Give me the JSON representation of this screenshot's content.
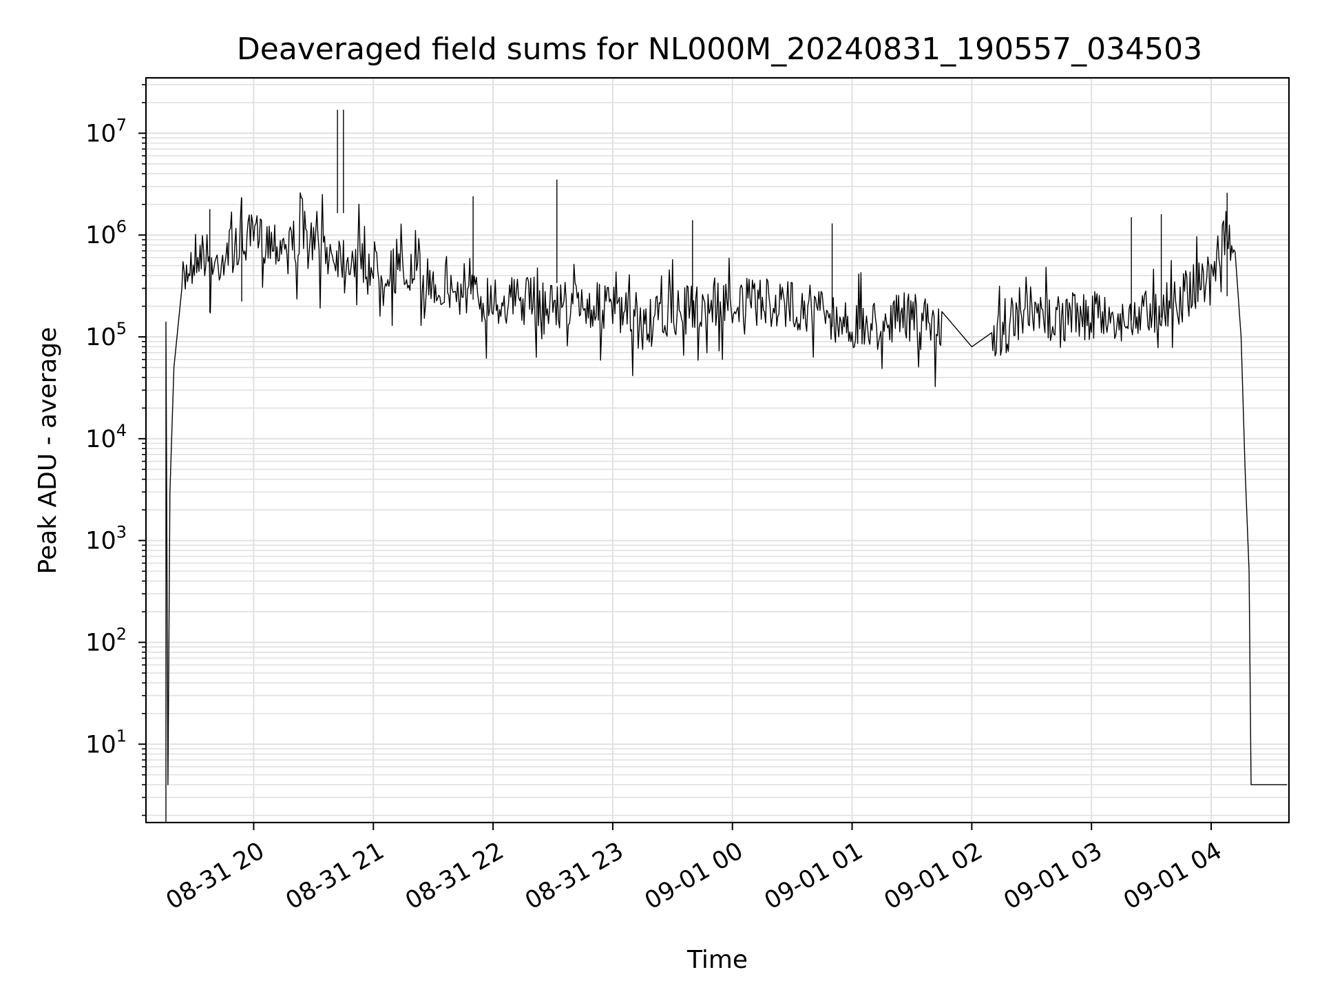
{
  "chart_data": {
    "type": "line",
    "title": "Deaveraged field sums for NL000M_20240831_190557_034503",
    "xlabel": "Time",
    "ylabel": "Peak ADU - average",
    "y_scale": "log",
    "ylim": [
      1.7,
      35000000
    ],
    "xlim": [
      "2024-08-31 19:06:00",
      "2024-09-01 04:39:00"
    ],
    "grid": true,
    "grid_minor": true,
    "line_color": "#000000",
    "grid_color": "#e0e0e0",
    "x_ticks": [
      {
        "value": "2024-08-31 20:00",
        "label": "08-31 20"
      },
      {
        "value": "2024-08-31 21:00",
        "label": "08-31 21"
      },
      {
        "value": "2024-08-31 22:00",
        "label": "08-31 22"
      },
      {
        "value": "2024-08-31 23:00",
        "label": "08-31 23"
      },
      {
        "value": "2024-09-01 00:00",
        "label": "09-01 00"
      },
      {
        "value": "2024-09-01 01:00",
        "label": "09-01 01"
      },
      {
        "value": "2024-09-01 02:00",
        "label": "09-01 02"
      },
      {
        "value": "2024-09-01 03:00",
        "label": "09-01 03"
      },
      {
        "value": "2024-09-01 04:00",
        "label": "09-01 04"
      }
    ],
    "y_ticks": [
      {
        "value": 10,
        "base": "10",
        "exp": "1"
      },
      {
        "value": 100,
        "base": "10",
        "exp": "2"
      },
      {
        "value": 1000,
        "base": "10",
        "exp": "3"
      },
      {
        "value": 10000,
        "base": "10",
        "exp": "4"
      },
      {
        "value": 100000,
        "base": "10",
        "exp": "5"
      },
      {
        "value": 1000000,
        "base": "10",
        "exp": "6"
      },
      {
        "value": 10000000,
        "base": "10",
        "exp": "7"
      }
    ],
    "series": [
      {
        "points": [
          [
            "2024-08-31 19:16",
            1.7
          ],
          [
            "2024-08-31 19:16",
            140000
          ],
          [
            "2024-08-31 19:17",
            4
          ],
          [
            "2024-08-31 19:18",
            3000
          ],
          [
            "2024-08-31 19:20",
            50000
          ],
          [
            "2024-08-31 19:24",
            300000
          ],
          [
            "2024-08-31 19:28",
            600000
          ],
          [
            "2024-08-31 19:32",
            750000
          ],
          [
            "2024-08-31 19:36",
            680000
          ],
          [
            "2024-08-31 19:40",
            500000
          ],
          [
            "2024-08-31 19:45",
            700000
          ],
          [
            "2024-08-31 19:50",
            800000
          ],
          [
            "2024-08-31 19:55",
            900000
          ],
          [
            "2024-08-31 20:00",
            1000000
          ],
          [
            "2024-08-31 20:10",
            950000
          ],
          [
            "2024-08-31 20:20",
            900000
          ],
          [
            "2024-08-31 20:30",
            850000
          ],
          [
            "2024-08-31 20:40",
            700000
          ],
          [
            "2024-08-31 20:50",
            650000
          ],
          [
            "2024-08-31 21:00",
            550000
          ],
          [
            "2024-08-31 21:15",
            450000
          ],
          [
            "2024-08-31 21:30",
            350000
          ],
          [
            "2024-08-31 21:45",
            280000
          ],
          [
            "2024-08-31 22:00",
            250000
          ],
          [
            "2024-08-31 22:30",
            230000
          ],
          [
            "2024-08-31 23:00",
            200000
          ],
          [
            "2024-08-31 23:15",
            130000
          ],
          [
            "2024-08-31 23:30",
            180000
          ],
          [
            "2024-08-31 23:45",
            210000
          ],
          [
            "2024-09-01 00:00",
            230000
          ],
          [
            "2024-09-01 00:30",
            220000
          ],
          [
            "2024-09-01 00:45",
            190000
          ],
          [
            "2024-09-01 01:00",
            130000
          ],
          [
            "2024-09-01 01:15",
            150000
          ],
          [
            "2024-09-01 01:30",
            170000
          ],
          [
            "2024-09-01 01:45",
            120000
          ],
          [
            "2024-09-01 02:00",
            80000
          ],
          [
            "2024-09-01 02:10",
            110000
          ],
          [
            "2024-09-01 02:30",
            160000
          ],
          [
            "2024-09-01 03:00",
            170000
          ],
          [
            "2024-09-01 03:20",
            150000
          ],
          [
            "2024-09-01 03:25",
            180000
          ],
          [
            "2024-09-01 03:45",
            250000
          ],
          [
            "2024-09-01 04:00",
            450000
          ],
          [
            "2024-09-01 04:05",
            800000
          ],
          [
            "2024-09-01 04:08",
            1100000
          ],
          [
            "2024-09-01 04:12",
            700000
          ],
          [
            "2024-09-01 04:15",
            100000
          ],
          [
            "2024-09-01 04:17",
            5000
          ],
          [
            "2024-09-01 04:19",
            500
          ],
          [
            "2024-09-01 04:20",
            4
          ],
          [
            "2024-09-01 04:38",
            4
          ]
        ],
        "spikes": [
          [
            "2024-08-31 19:38",
            1800000
          ],
          [
            "2024-08-31 19:54",
            2300000
          ],
          [
            "2024-08-31 20:42",
            17000000
          ],
          [
            "2024-08-31 20:45",
            17000000
          ],
          [
            "2024-08-31 22:32",
            3500000
          ],
          [
            "2024-08-31 21:50",
            2400000
          ],
          [
            "2024-09-01 04:08",
            2600000
          ],
          [
            "2024-09-01 03:35",
            1600000
          ],
          [
            "2024-09-01 03:20",
            1500000
          ],
          [
            "2024-08-31 23:40",
            1400000
          ],
          [
            "2024-09-01 00:50",
            1300000
          ]
        ]
      }
    ]
  }
}
